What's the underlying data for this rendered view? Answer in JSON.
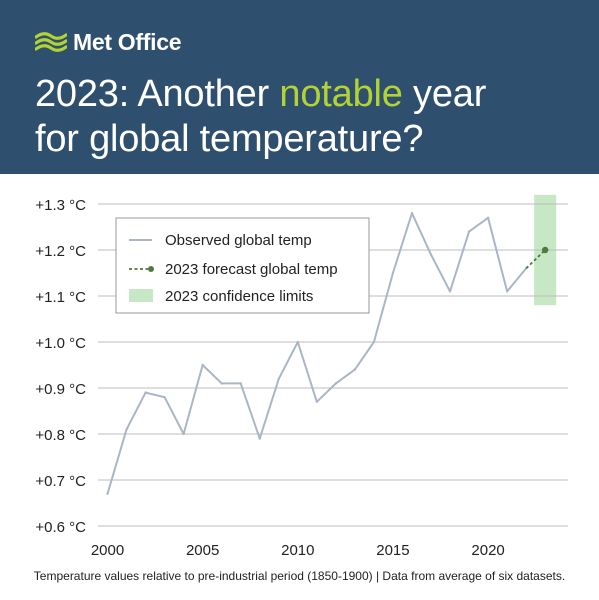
{
  "brand": {
    "name": "Met Office",
    "logo_icon": "met-office-swoosh-icon",
    "accent_color": "#b3d335",
    "header_color": "#2f4f6e"
  },
  "headline": {
    "part1": "2023: Another ",
    "highlight": "notable",
    "part2": " year",
    "line2": "for global temperature?"
  },
  "chart_data": {
    "type": "line",
    "title": "2023: Another notable year for global temperature?",
    "xlabel": "",
    "ylabel": "",
    "xlim": [
      1999.5,
      2024.2
    ],
    "ylim": [
      0.6,
      1.3
    ],
    "x_ticks": [
      2000,
      2005,
      2010,
      2015,
      2020
    ],
    "y_ticks": [
      {
        "value": 0.6,
        "label": "+0.6 °C"
      },
      {
        "value": 0.7,
        "label": "+0.7 °C"
      },
      {
        "value": 0.8,
        "label": "+0.8 °C"
      },
      {
        "value": 0.9,
        "label": "+0.9 °C"
      },
      {
        "value": 1.0,
        "label": "+1.0 °C"
      },
      {
        "value": 1.1,
        "label": "+1.1 °C"
      },
      {
        "value": 1.2,
        "label": "+1.2 °C"
      },
      {
        "value": 1.3,
        "label": "+1.3 °C"
      }
    ],
    "grid": "horizontal",
    "series": [
      {
        "name": "Observed global temp",
        "color": "#aab6c6",
        "style": "solid",
        "x": [
          2000,
          2001,
          2002,
          2003,
          2004,
          2005,
          2006,
          2007,
          2008,
          2009,
          2010,
          2011,
          2012,
          2013,
          2014,
          2015,
          2016,
          2017,
          2018,
          2019,
          2020,
          2021,
          2022
        ],
        "values": [
          0.67,
          0.81,
          0.89,
          0.88,
          0.8,
          0.95,
          0.91,
          0.91,
          0.79,
          0.92,
          1.0,
          0.87,
          0.91,
          0.94,
          1.0,
          1.15,
          1.28,
          1.19,
          1.11,
          1.24,
          1.27,
          1.11,
          1.16
        ]
      },
      {
        "name": "2023 forecast global temp",
        "color": "#4e7a3b",
        "style": "dashed",
        "x": [
          2022,
          2023
        ],
        "values": [
          1.16,
          1.2
        ]
      }
    ],
    "confidence_band": {
      "name": "2023 confidence limits",
      "color": "#c6e8c4",
      "x": 2023,
      "low": 1.08,
      "high": 1.32
    },
    "legend_position": "top-left"
  },
  "footnote": "Temperature values relative to pre-industrial period (1850-1900)  |  Data from average of six datasets."
}
